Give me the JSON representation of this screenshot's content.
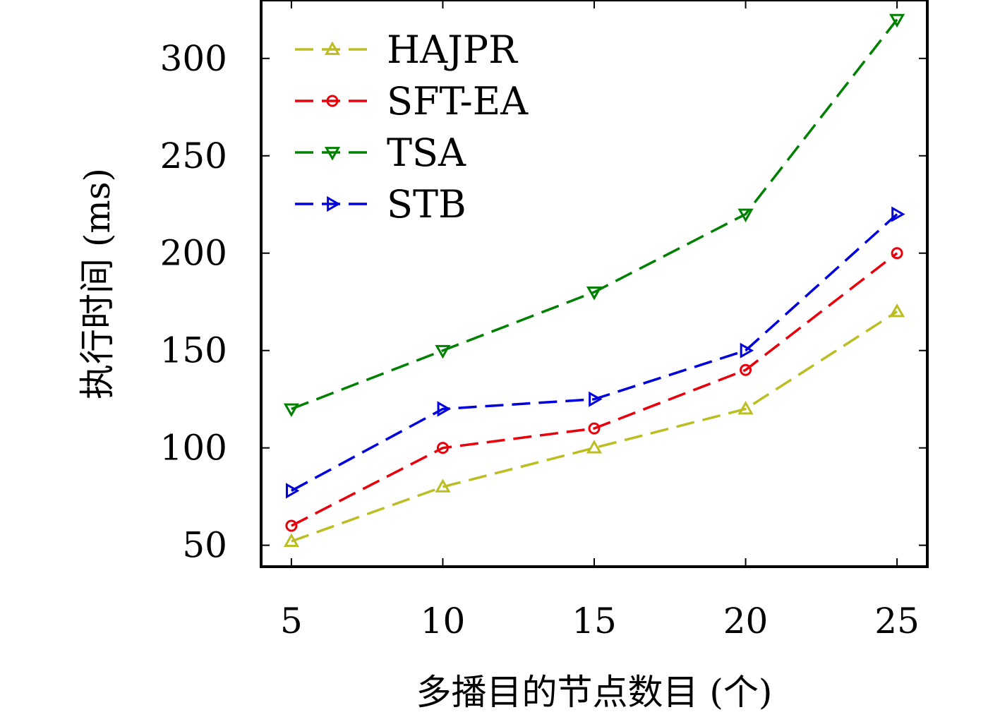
{
  "chart_data": {
    "type": "line",
    "xlabel": "多播目的节点数目 (个)",
    "ylabel": "执行时间 (ms)",
    "x": [
      5,
      10,
      15,
      20,
      25
    ],
    "xlim": [
      4,
      26
    ],
    "ylim": [
      39,
      330
    ],
    "xticks": [
      5,
      10,
      15,
      20,
      25
    ],
    "yticks": [
      50,
      100,
      150,
      200,
      250,
      300
    ],
    "grid": false,
    "legend_position": "top-left",
    "series": [
      {
        "name": "HAJPR",
        "color": "#bcbd22",
        "marker": "triangle-up",
        "values": [
          52,
          80,
          100,
          120,
          170
        ]
      },
      {
        "name": "SFT-EA",
        "color": "#e8000b",
        "marker": "circle",
        "values": [
          60,
          100,
          110,
          140,
          200
        ]
      },
      {
        "name": "TSA",
        "color": "#008000",
        "marker": "triangle-down",
        "values": [
          120,
          150,
          180,
          220,
          320
        ]
      },
      {
        "name": "STB",
        "color": "#0000dd",
        "marker": "triangle-right",
        "values": [
          78,
          120,
          125,
          150,
          220
        ]
      }
    ]
  }
}
